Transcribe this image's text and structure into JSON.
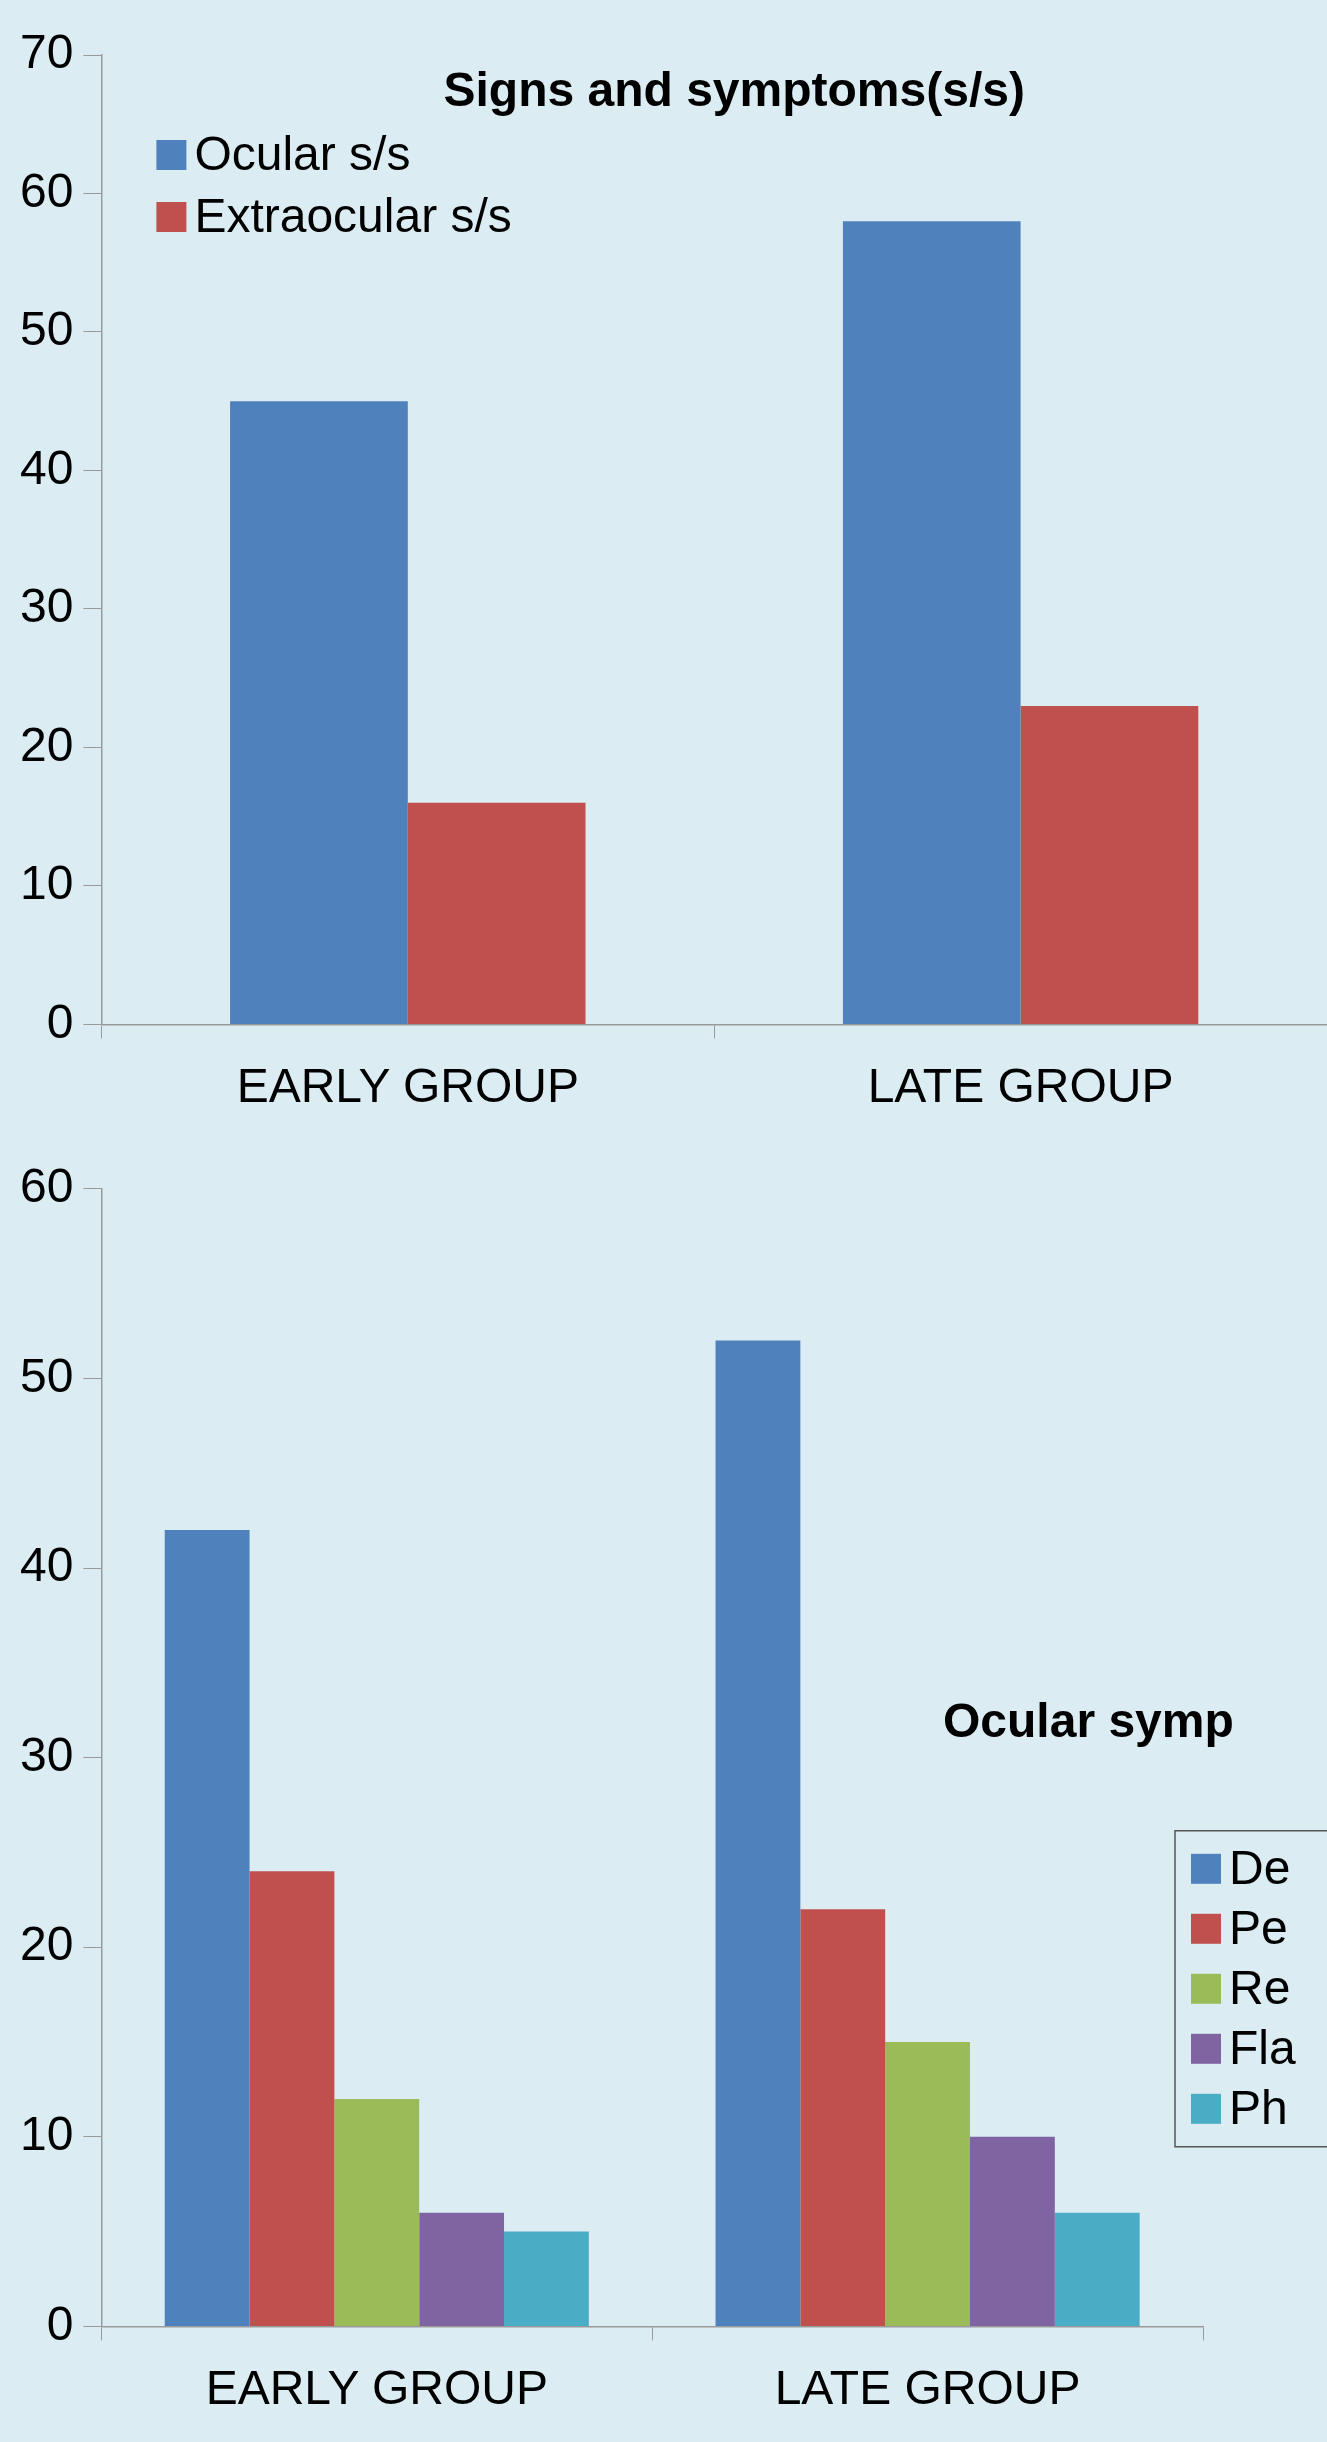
{
  "chart_data": [
    {
      "type": "bar",
      "title": "Signs and symptoms(s/s)",
      "categories": [
        "EARLY GROUP",
        "LATE GROUP"
      ],
      "ylim": [
        0,
        70
      ],
      "yticks": [
        0,
        10,
        20,
        30,
        40,
        50,
        60,
        70
      ],
      "grid": false,
      "legend": "top left",
      "series": [
        {
          "name": "Ocular s/s",
          "color": "#4f81bd",
          "values": [
            45,
            58
          ]
        },
        {
          "name": "Extraocular s/s",
          "color": "#c0504d",
          "values": [
            16,
            23
          ]
        }
      ]
    },
    {
      "type": "bar",
      "title": "Ocular symp",
      "categories": [
        "EARLY GROUP",
        "LATE GROUP"
      ],
      "ylim": [
        0,
        60
      ],
      "yticks": [
        0,
        10,
        20,
        30,
        40,
        50,
        60
      ],
      "grid": false,
      "legend": "right",
      "series": [
        {
          "name": "De",
          "color": "#4f81bd",
          "values": [
            42,
            52
          ]
        },
        {
          "name": "Pe",
          "color": "#c0504d",
          "values": [
            24,
            22
          ]
        },
        {
          "name": "Re",
          "color": "#9bbb59",
          "values": [
            12,
            15
          ]
        },
        {
          "name": "Fla",
          "color": "#8064a2",
          "values": [
            6,
            10
          ]
        },
        {
          "name": "Ph",
          "color": "#4bacc6",
          "values": [
            5,
            6
          ]
        }
      ]
    }
  ]
}
